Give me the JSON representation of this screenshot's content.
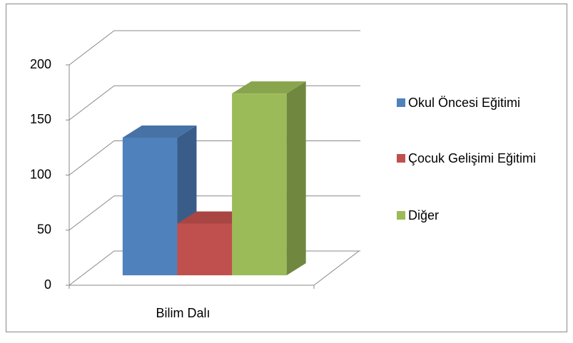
{
  "chart_data": {
    "type": "bar3d",
    "categories": [
      "Bilim Dalı"
    ],
    "series": [
      {
        "name": "Okul Öncesi Eğitimi",
        "color": "#4f81bd",
        "values": [
          125
        ]
      },
      {
        "name": "Çocuk Gelişimi Eğitimi",
        "color": "#c0504d",
        "values": [
          47
        ]
      },
      {
        "name": "Diğer",
        "color": "#9bbb59",
        "values": [
          165
        ]
      }
    ],
    "ylim": [
      0,
      200
    ],
    "yticks": [
      0,
      50,
      100,
      150,
      200
    ],
    "grid": true,
    "legend": "right"
  }
}
